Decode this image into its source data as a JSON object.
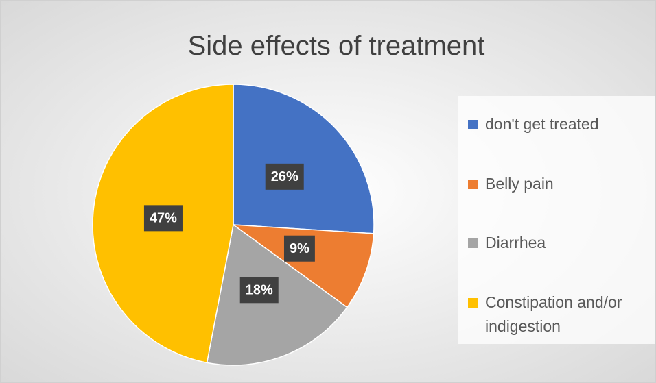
{
  "chart_data": {
    "type": "pie",
    "title": "Side effects of treatment",
    "categories": [
      "don't get treated",
      "Belly pain",
      "Diarrhea",
      "Constipation and/or indigestion"
    ],
    "values": [
      26,
      9,
      18,
      47
    ],
    "value_labels": [
      "26%",
      "9%",
      "18%",
      "47%"
    ],
    "colors": [
      "#4472c4",
      "#ed7d31",
      "#a5a5a5",
      "#ffc000"
    ],
    "legend": "right"
  }
}
